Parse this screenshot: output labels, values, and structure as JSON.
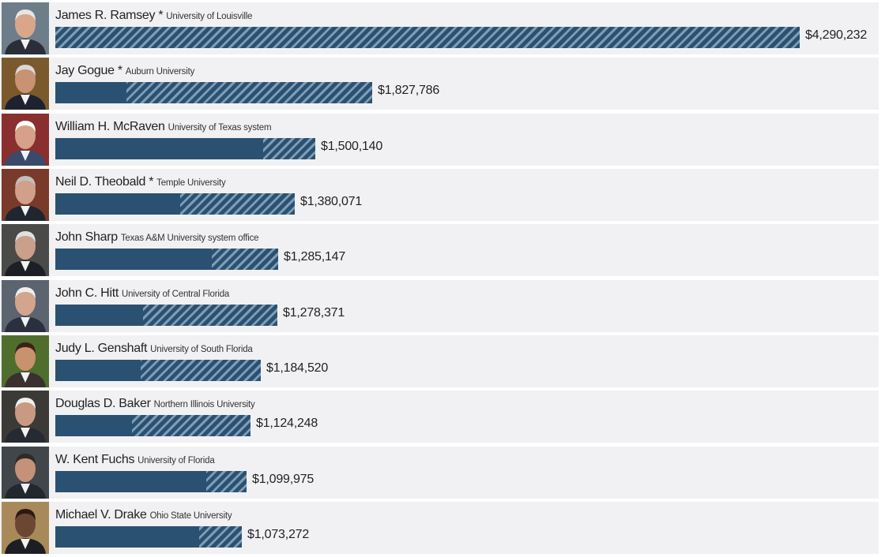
{
  "chart_data": {
    "type": "bar",
    "orientation": "horizontal",
    "categories": [
      "James R. Ramsey",
      "Jay Gogue",
      "William H. McRaven",
      "Neil D. Theobald",
      "John Sharp",
      "John C. Hitt",
      "Judy L. Genshaft",
      "Douglas D. Baker",
      "W. Kent Fuchs",
      "Michael V. Drake"
    ],
    "rows": [
      {
        "name": "James R. Ramsey",
        "marker": "*",
        "school": "University of Louisville",
        "value": 4290232,
        "value_label": "$4,290,232",
        "solid_value": 0
      },
      {
        "name": "Jay Gogue",
        "marker": "*",
        "school": "Auburn University",
        "value": 1827786,
        "value_label": "$1,827,786",
        "solid_value": 410000
      },
      {
        "name": "William H. McRaven",
        "marker": "",
        "school": "University of Texas system",
        "value": 1500140,
        "value_label": "$1,500,140",
        "solid_value": 1200000
      },
      {
        "name": "Neil D. Theobald",
        "marker": "*",
        "school": "Temple University",
        "value": 1380071,
        "value_label": "$1,380,071",
        "solid_value": 720000
      },
      {
        "name": "John Sharp",
        "marker": "",
        "school": "Texas A&M University system office",
        "value": 1285147,
        "value_label": "$1,285,147",
        "solid_value": 900000
      },
      {
        "name": "John C. Hitt",
        "marker": "",
        "school": "University of Central Florida",
        "value": 1278371,
        "value_label": "$1,278,371",
        "solid_value": 505000
      },
      {
        "name": "Judy L. Genshaft",
        "marker": "",
        "school": "University of South Florida",
        "value": 1184520,
        "value_label": "$1,184,520",
        "solid_value": 490000
      },
      {
        "name": "Douglas D. Baker",
        "marker": "",
        "school": "Northern Illinois University",
        "value": 1124248,
        "value_label": "$1,124,248",
        "solid_value": 440000
      },
      {
        "name": "W. Kent Fuchs",
        "marker": "",
        "school": "University of Florida",
        "value": 1099975,
        "value_label": "$1,099,975",
        "solid_value": 870000
      },
      {
        "name": "Michael V. Drake",
        "marker": "",
        "school": "Ohio State University",
        "value": 1073272,
        "value_label": "$1,073,272",
        "solid_value": 830000
      }
    ],
    "xlim": [
      0,
      4290232
    ],
    "title": "",
    "xlabel": "",
    "ylabel": "",
    "grid": false,
    "legend": "none",
    "colors": {
      "bar": "#2b5172",
      "hatch_light": "#7e9db5",
      "row_background": "#f1f1f3",
      "text": "#222222"
    }
  }
}
